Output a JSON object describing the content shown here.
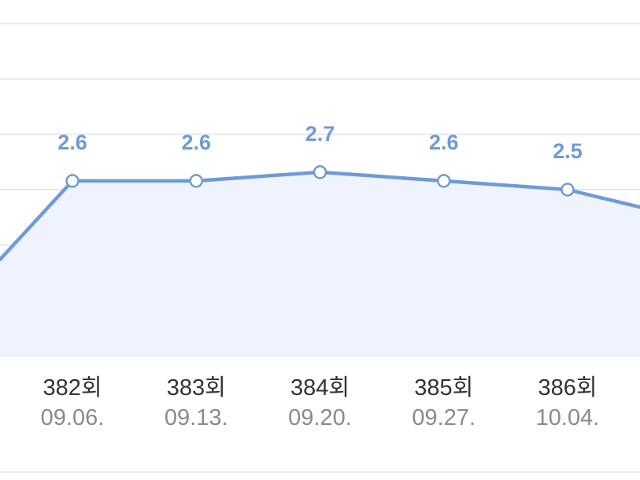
{
  "colors": {
    "line": "#6f9ad8",
    "label": "#6f9ad8",
    "area": "#eef3fd",
    "grid": "#e6e8ee"
  },
  "chart_data": {
    "type": "area",
    "title": "",
    "xlabel": "",
    "ylabel": "",
    "grid": true,
    "legend": "none",
    "categories": [
      "382회",
      "383회",
      "384회",
      "385회",
      "386회"
    ],
    "dates": [
      "09.06.",
      "09.13.",
      "09.20.",
      "09.27.",
      "10.04."
    ],
    "x": [
      382,
      383,
      384,
      385,
      386
    ],
    "values": [
      2.6,
      2.6,
      2.7,
      2.6,
      2.5
    ],
    "data_labels": [
      "2.6",
      "2.6",
      "2.7",
      "2.6",
      "2.5"
    ],
    "partial_edges": {
      "left_value": 1.7,
      "right_value": 2.3
    },
    "ylim": [
      0.6,
      4.4
    ]
  }
}
